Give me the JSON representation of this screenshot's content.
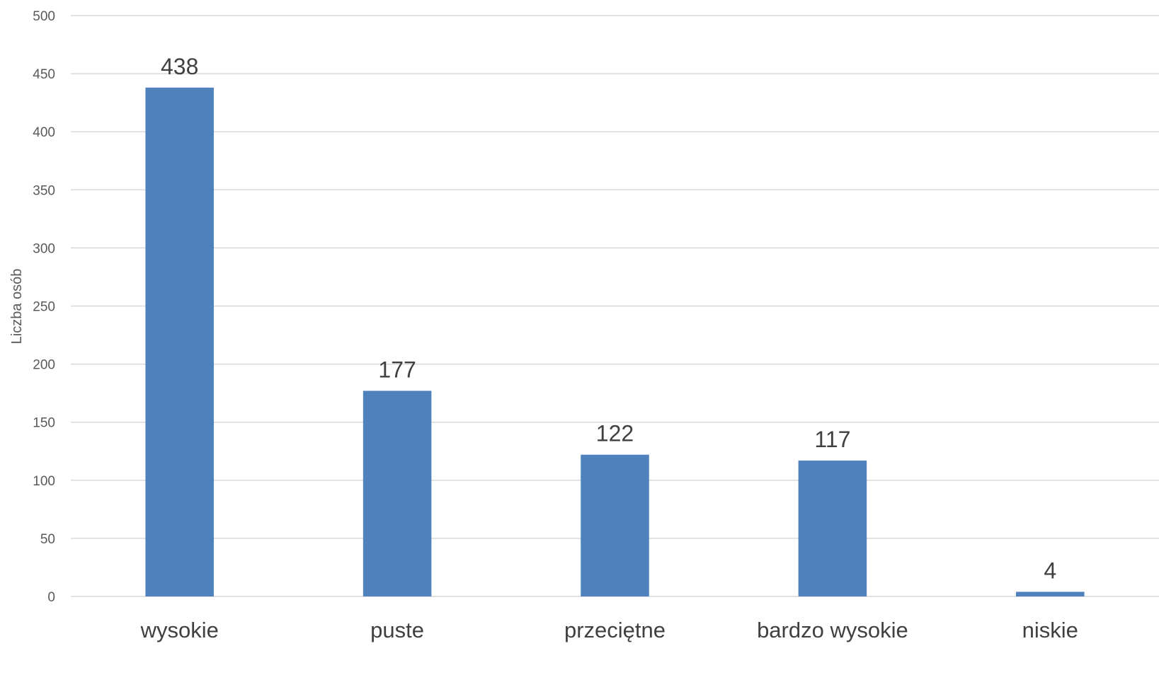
{
  "chart_data": {
    "type": "bar",
    "title": "",
    "xlabel": "",
    "ylabel": "Liczba osób",
    "categories": [
      "wysokie",
      "puste",
      "przeciętne",
      "bardzo wysokie",
      "niskie"
    ],
    "values": [
      438,
      177,
      122,
      117,
      4
    ],
    "ylim": [
      0,
      500
    ],
    "yticks": [
      0,
      50,
      100,
      150,
      200,
      250,
      300,
      350,
      400,
      450,
      500
    ],
    "grid": true,
    "legend": "none",
    "data_labels": true,
    "bar_color": "#4f81bd"
  }
}
